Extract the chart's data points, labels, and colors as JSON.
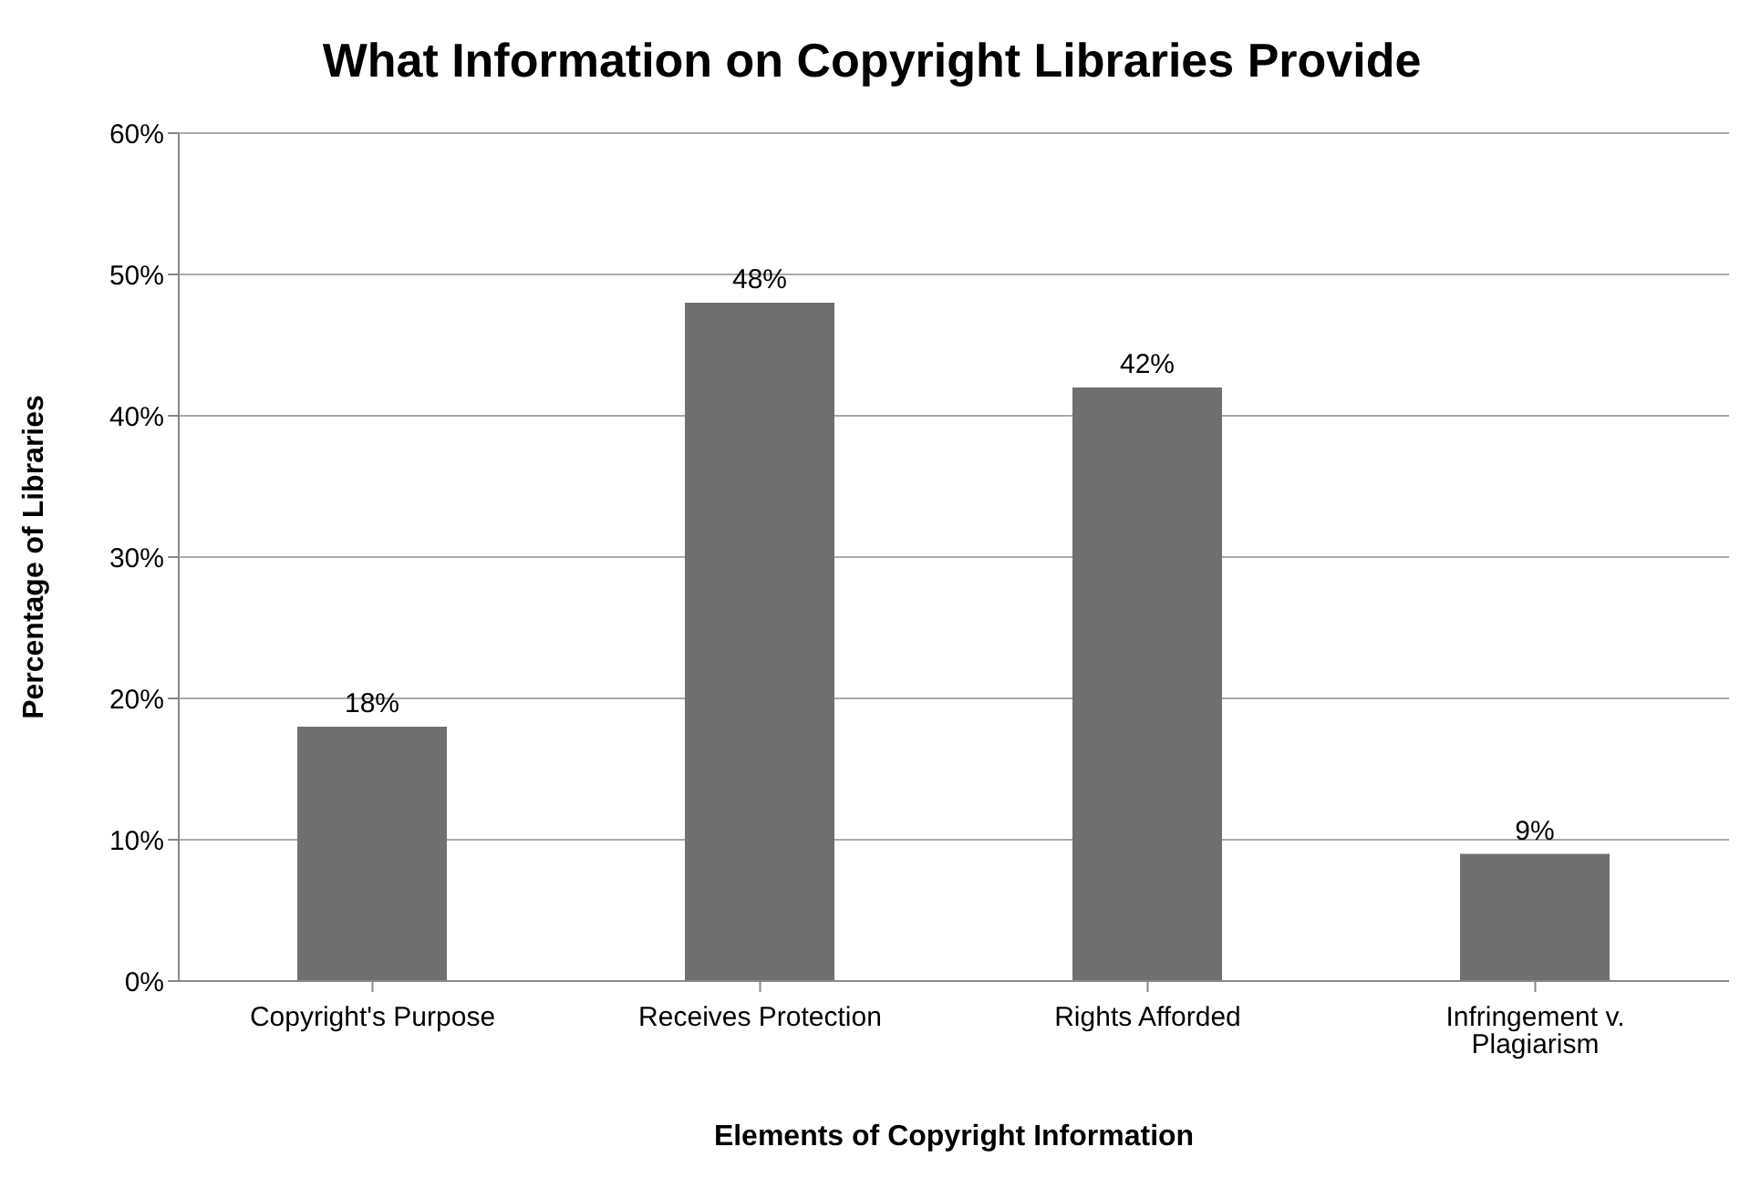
{
  "chart_data": {
    "type": "bar",
    "title": "What Information on Copyright Libraries Provide",
    "xlabel": "Elements of Copyright Information",
    "ylabel": "Percentage of Libraries",
    "categories": [
      "Copyright's Purpose",
      "Receives Protection",
      "Rights Afforded",
      "Infringement v. Plagiarism"
    ],
    "values": [
      18,
      48,
      42,
      9
    ],
    "value_labels": [
      "18%",
      "48%",
      "42%",
      "9%"
    ],
    "color": "#707070",
    "ylim": [
      0,
      60
    ],
    "yticks": [
      {
        "value": 0,
        "label": "0%"
      },
      {
        "value": 10,
        "label": "10%"
      },
      {
        "value": 20,
        "label": "20%"
      },
      {
        "value": 30,
        "label": "30%"
      },
      {
        "value": 40,
        "label": "40%"
      },
      {
        "value": 50,
        "label": "50%"
      },
      {
        "value": 60,
        "label": "60%"
      }
    ],
    "grid": "y",
    "legend": false
  }
}
